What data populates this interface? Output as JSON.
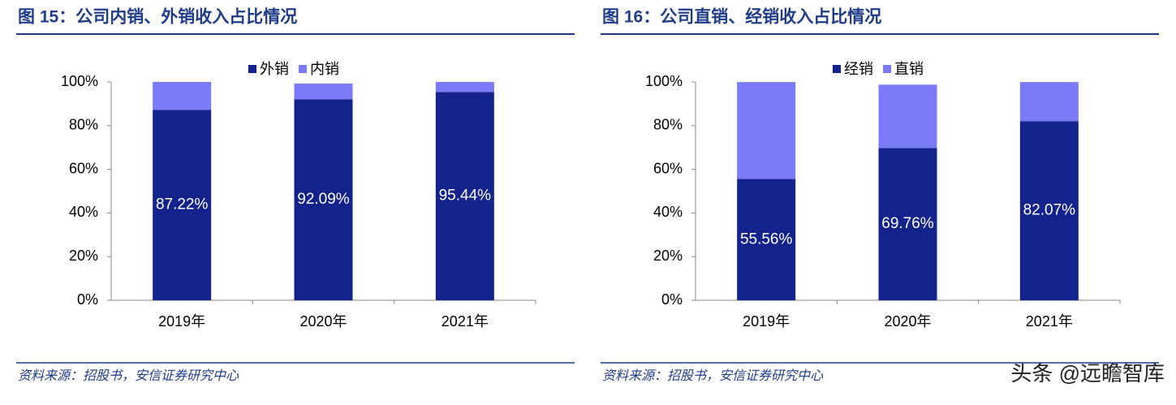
{
  "chart_data": [
    {
      "type": "stacked-bar",
      "title": "图 15：公司内销、外销收入占比情况",
      "source": "资料来源：招股书，安信证券研究中心",
      "categories": [
        "2019年",
        "2020年",
        "2021年"
      ],
      "series": [
        {
          "name": "外销",
          "color": "#14238c",
          "values": [
            87.22,
            92.09,
            95.44
          ],
          "value_labels": [
            "87.22%",
            "92.09%",
            "95.44%"
          ]
        },
        {
          "name": "内销",
          "color": "#7b7bf7",
          "values": [
            12.8,
            7.2,
            4.6
          ]
        }
      ],
      "ylim": [
        0,
        100
      ],
      "yticks": [
        {
          "value": 0,
          "label": "0%"
        },
        {
          "value": 20,
          "label": "20%"
        },
        {
          "value": 40,
          "label": "40%"
        },
        {
          "value": 60,
          "label": "60%"
        },
        {
          "value": 80,
          "label": "80%"
        },
        {
          "value": 100,
          "label": "100%"
        }
      ],
      "legend": "top"
    },
    {
      "type": "stacked-bar",
      "title": "图 16：公司直销、经销收入占比情况",
      "source": "资料来源：招股书，安信证券研究中心",
      "categories": [
        "2019年",
        "2020年",
        "2021年"
      ],
      "series": [
        {
          "name": "经销",
          "color": "#14238c",
          "values": [
            55.56,
            69.76,
            82.07
          ],
          "value_labels": [
            "55.56%",
            "69.76%",
            "82.07%"
          ]
        },
        {
          "name": "直销",
          "color": "#7b7bf7",
          "values": [
            44.4,
            29,
            17.9
          ]
        }
      ],
      "ylim": [
        0,
        100
      ],
      "yticks": [
        {
          "value": 0,
          "label": "0%"
        },
        {
          "value": 20,
          "label": "20%"
        },
        {
          "value": 40,
          "label": "40%"
        },
        {
          "value": 60,
          "label": "60%"
        },
        {
          "value": 80,
          "label": "80%"
        },
        {
          "value": 100,
          "label": "100%"
        }
      ],
      "legend": "top"
    }
  ],
  "watermark": "头条 @远瞻智库"
}
